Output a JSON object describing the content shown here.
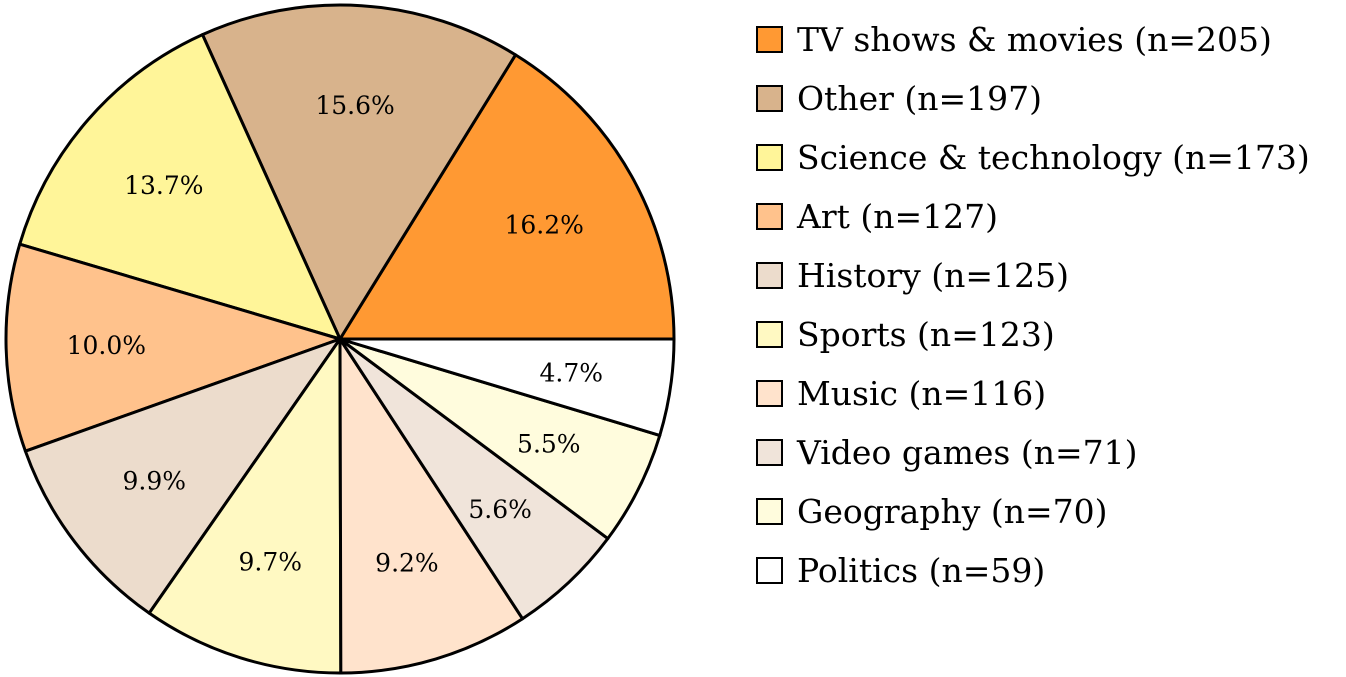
{
  "chart_data": {
    "type": "pie",
    "slices": [
      {
        "label": "TV shows & movies",
        "legend": "TV shows & movies (n=205)",
        "n": 205,
        "pct_label": "16.2%",
        "color": "#FF9933"
      },
      {
        "label": "Other",
        "legend": "Other (n=197)",
        "n": 197,
        "pct_label": "15.6%",
        "color": "#D8B38C"
      },
      {
        "label": "Science & technology",
        "legend": "Science & technology (n=173)",
        "n": 173,
        "pct_label": "13.7%",
        "color": "#FFF599"
      },
      {
        "label": "Art",
        "legend": "Art (n=127)",
        "n": 127,
        "pct_label": "10.0%",
        "color": "#FFC28C"
      },
      {
        "label": "History",
        "legend": "History (n=125)",
        "n": 125,
        "pct_label": "9.9%",
        "color": "#ECDCCC"
      },
      {
        "label": "Sports",
        "legend": "Sports (n=123)",
        "n": 123,
        "pct_label": "9.7%",
        "color": "#FFF9C2"
      },
      {
        "label": "Music",
        "legend": "Music (n=116)",
        "n": 116,
        "pct_label": "9.2%",
        "color": "#FFE3CC"
      },
      {
        "label": "Video games",
        "legend": "Video games (n=71)",
        "n": 71,
        "pct_label": "5.6%",
        "color": "#F0E4DA"
      },
      {
        "label": "Geography",
        "legend": "Geography (n=70)",
        "n": 70,
        "pct_label": "5.5%",
        "color": "#FFFCDD"
      },
      {
        "label": "Politics",
        "legend": "Politics (n=59)",
        "n": 59,
        "pct_label": "4.7%",
        "color": "#FFFFFF"
      }
    ],
    "start_angle_deg": 0,
    "direction": "counterclockwise",
    "legend_position": "right",
    "edge_color": "#000000"
  }
}
